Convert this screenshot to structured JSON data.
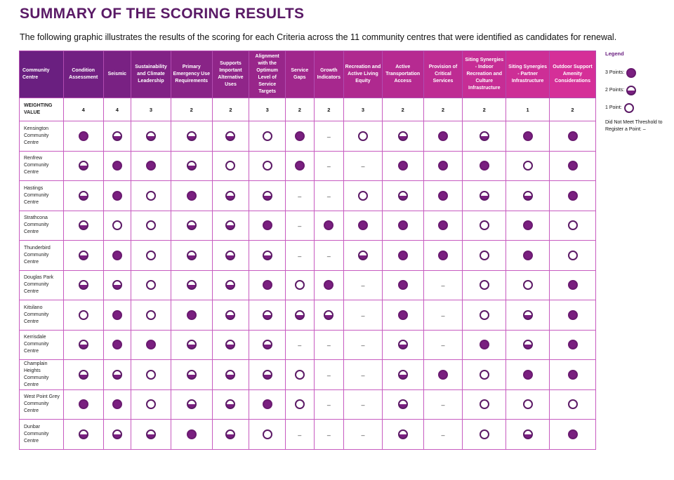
{
  "title": "SUMMARY OF THE SCORING RESULTS",
  "subtitle": "The following graphic illustrates the results of the scoring for each Criteria across the 11 community centres that were identified as candidates for renewal.",
  "columns": [
    "Community Centre",
    "Condition Assessment",
    "Seismic",
    "Sustainability and Climate Leadership",
    "Primary Emergency Use Requirements",
    "Supports Important Alternative Uses",
    "Alignment with the Optimum Level of Service Targets",
    "Service Gaps",
    "Growth Indicators",
    "Recreation and Active Living Equity",
    "Active Transportation Access",
    "Provision of Critical Services",
    "Siting Synergies - Indoor Recreation and Culture Infrastructure",
    "Siting Synergies - Partner Infrastructure",
    "Outdoor Support Amenity Considerations"
  ],
  "weighting": {
    "label": "WEIGHTING VALUE",
    "values": [
      "4",
      "4",
      "3",
      "2",
      "2",
      "3",
      "2",
      "2",
      "3",
      "2",
      "2",
      "2",
      "1",
      "2"
    ]
  },
  "rows": [
    {
      "name": "Kensington Community Centre",
      "scores": [
        3,
        2,
        2,
        2,
        2,
        1,
        3,
        0,
        1,
        2,
        3,
        2,
        3,
        3
      ]
    },
    {
      "name": "Renfrew Community Centre",
      "scores": [
        2,
        3,
        3,
        2,
        1,
        1,
        3,
        0,
        0,
        3,
        3,
        3,
        1,
        3
      ]
    },
    {
      "name": "Hastings Community Centre",
      "scores": [
        2,
        3,
        1,
        3,
        2,
        2,
        0,
        0,
        1,
        2,
        3,
        2,
        2,
        3
      ]
    },
    {
      "name": "Strathcona Community Centre",
      "scores": [
        2,
        1,
        1,
        2,
        2,
        3,
        0,
        3,
        3,
        3,
        3,
        1,
        3,
        1
      ]
    },
    {
      "name": "Thunderbird Community Centre",
      "scores": [
        2,
        3,
        1,
        2,
        2,
        2,
        0,
        0,
        2,
        3,
        3,
        1,
        3,
        1
      ]
    },
    {
      "name": "Douglas Park Community Centre",
      "scores": [
        2,
        2,
        1,
        2,
        2,
        3,
        1,
        3,
        0,
        3,
        0,
        1,
        1,
        3
      ]
    },
    {
      "name": "Kitsilano Community Centre",
      "scores": [
        1,
        3,
        1,
        3,
        2,
        2,
        2,
        2,
        0,
        3,
        0,
        1,
        2,
        3
      ]
    },
    {
      "name": "Kerrisdale Community Centre",
      "scores": [
        2,
        3,
        3,
        2,
        2,
        2,
        0,
        0,
        0,
        2,
        0,
        3,
        2,
        3
      ]
    },
    {
      "name": "Champlain Heights Community Centre",
      "scores": [
        2,
        2,
        1,
        2,
        2,
        2,
        1,
        0,
        0,
        2,
        3,
        1,
        3,
        3
      ]
    },
    {
      "name": "West Point Grey Community Centre",
      "scores": [
        3,
        3,
        1,
        2,
        2,
        3,
        1,
        0,
        0,
        2,
        0,
        1,
        1,
        1
      ]
    },
    {
      "name": "Dunbar Community Centre",
      "scores": [
        2,
        2,
        2,
        3,
        2,
        1,
        0,
        0,
        0,
        2,
        0,
        1,
        2,
        3
      ]
    }
  ],
  "legend": {
    "title": "Legend",
    "three": "3 Points:",
    "two": "2 Points:",
    "one": "1 Point:",
    "none": "Did Not Meet Threshold to Register a Point: –"
  },
  "dash_symbol": "–",
  "colors": {
    "header_start": "#6a1f80",
    "header_end": "#d52f98",
    "grid": "#c75bc0",
    "dot": "#7a1f80"
  }
}
